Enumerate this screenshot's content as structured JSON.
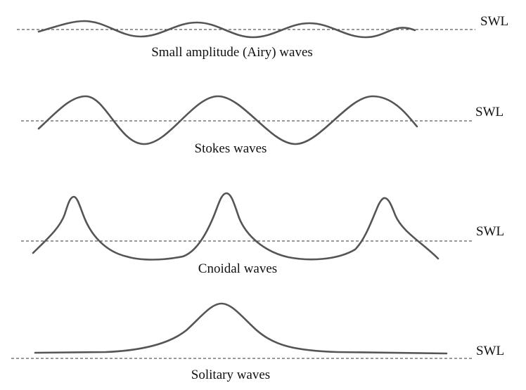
{
  "panels": [
    {
      "name": "airy",
      "caption": "Small amplitude (Airy) waves",
      "swl_label": "SWL"
    },
    {
      "name": "stokes",
      "caption": "Stokes waves",
      "swl_label": "SWL"
    },
    {
      "name": "cnoidal",
      "caption": "Cnoidal waves",
      "swl_label": "SWL"
    },
    {
      "name": "solitary",
      "caption": "Solitary waves",
      "swl_label": "SWL"
    }
  ],
  "colors": {
    "curve": "#555555",
    "swl_line": "#333333",
    "text": "#111111",
    "background": "#ffffff"
  }
}
